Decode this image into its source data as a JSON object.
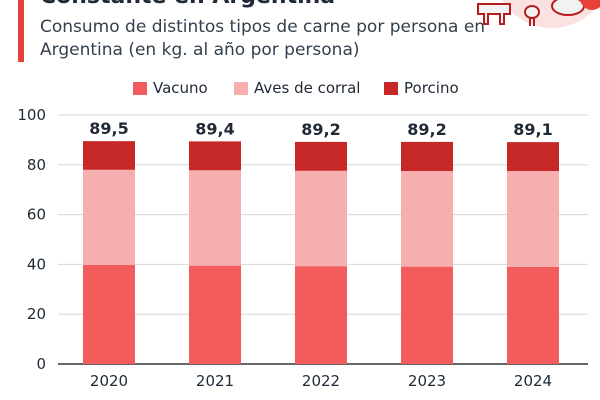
{
  "header": {
    "title_fragment": "Constante en Argentina",
    "subtitle": "Consumo de distintos tipos de carne por persona en Argentina (en kg. al año por persona)",
    "accent_color": "#e8413c",
    "illustration_icons": [
      "cow-icon",
      "chicken-icon",
      "pig-icon"
    ]
  },
  "chart_data": {
    "type": "bar",
    "stacked": true,
    "categories": [
      "2020",
      "2021",
      "2022",
      "2023",
      "2024"
    ],
    "series": [
      {
        "name": "Vacuno",
        "color": "#f25c5c",
        "values": [
          39.8,
          39.5,
          39.3,
          39.1,
          39.0
        ]
      },
      {
        "name": "Aves de corral",
        "color": "#f7aeae",
        "values": [
          38.2,
          38.3,
          38.3,
          38.4,
          38.5
        ]
      },
      {
        "name": "Porcino",
        "color": "#c62828",
        "values": [
          11.5,
          11.6,
          11.6,
          11.7,
          11.6
        ]
      }
    ],
    "totals": [
      "89,5",
      "89,4",
      "89,2",
      "89,2",
      "89,1"
    ],
    "ylim": [
      0,
      100
    ],
    "yticks": [
      0,
      20,
      40,
      60,
      80,
      100
    ],
    "legend_position": "top",
    "grid": true
  }
}
